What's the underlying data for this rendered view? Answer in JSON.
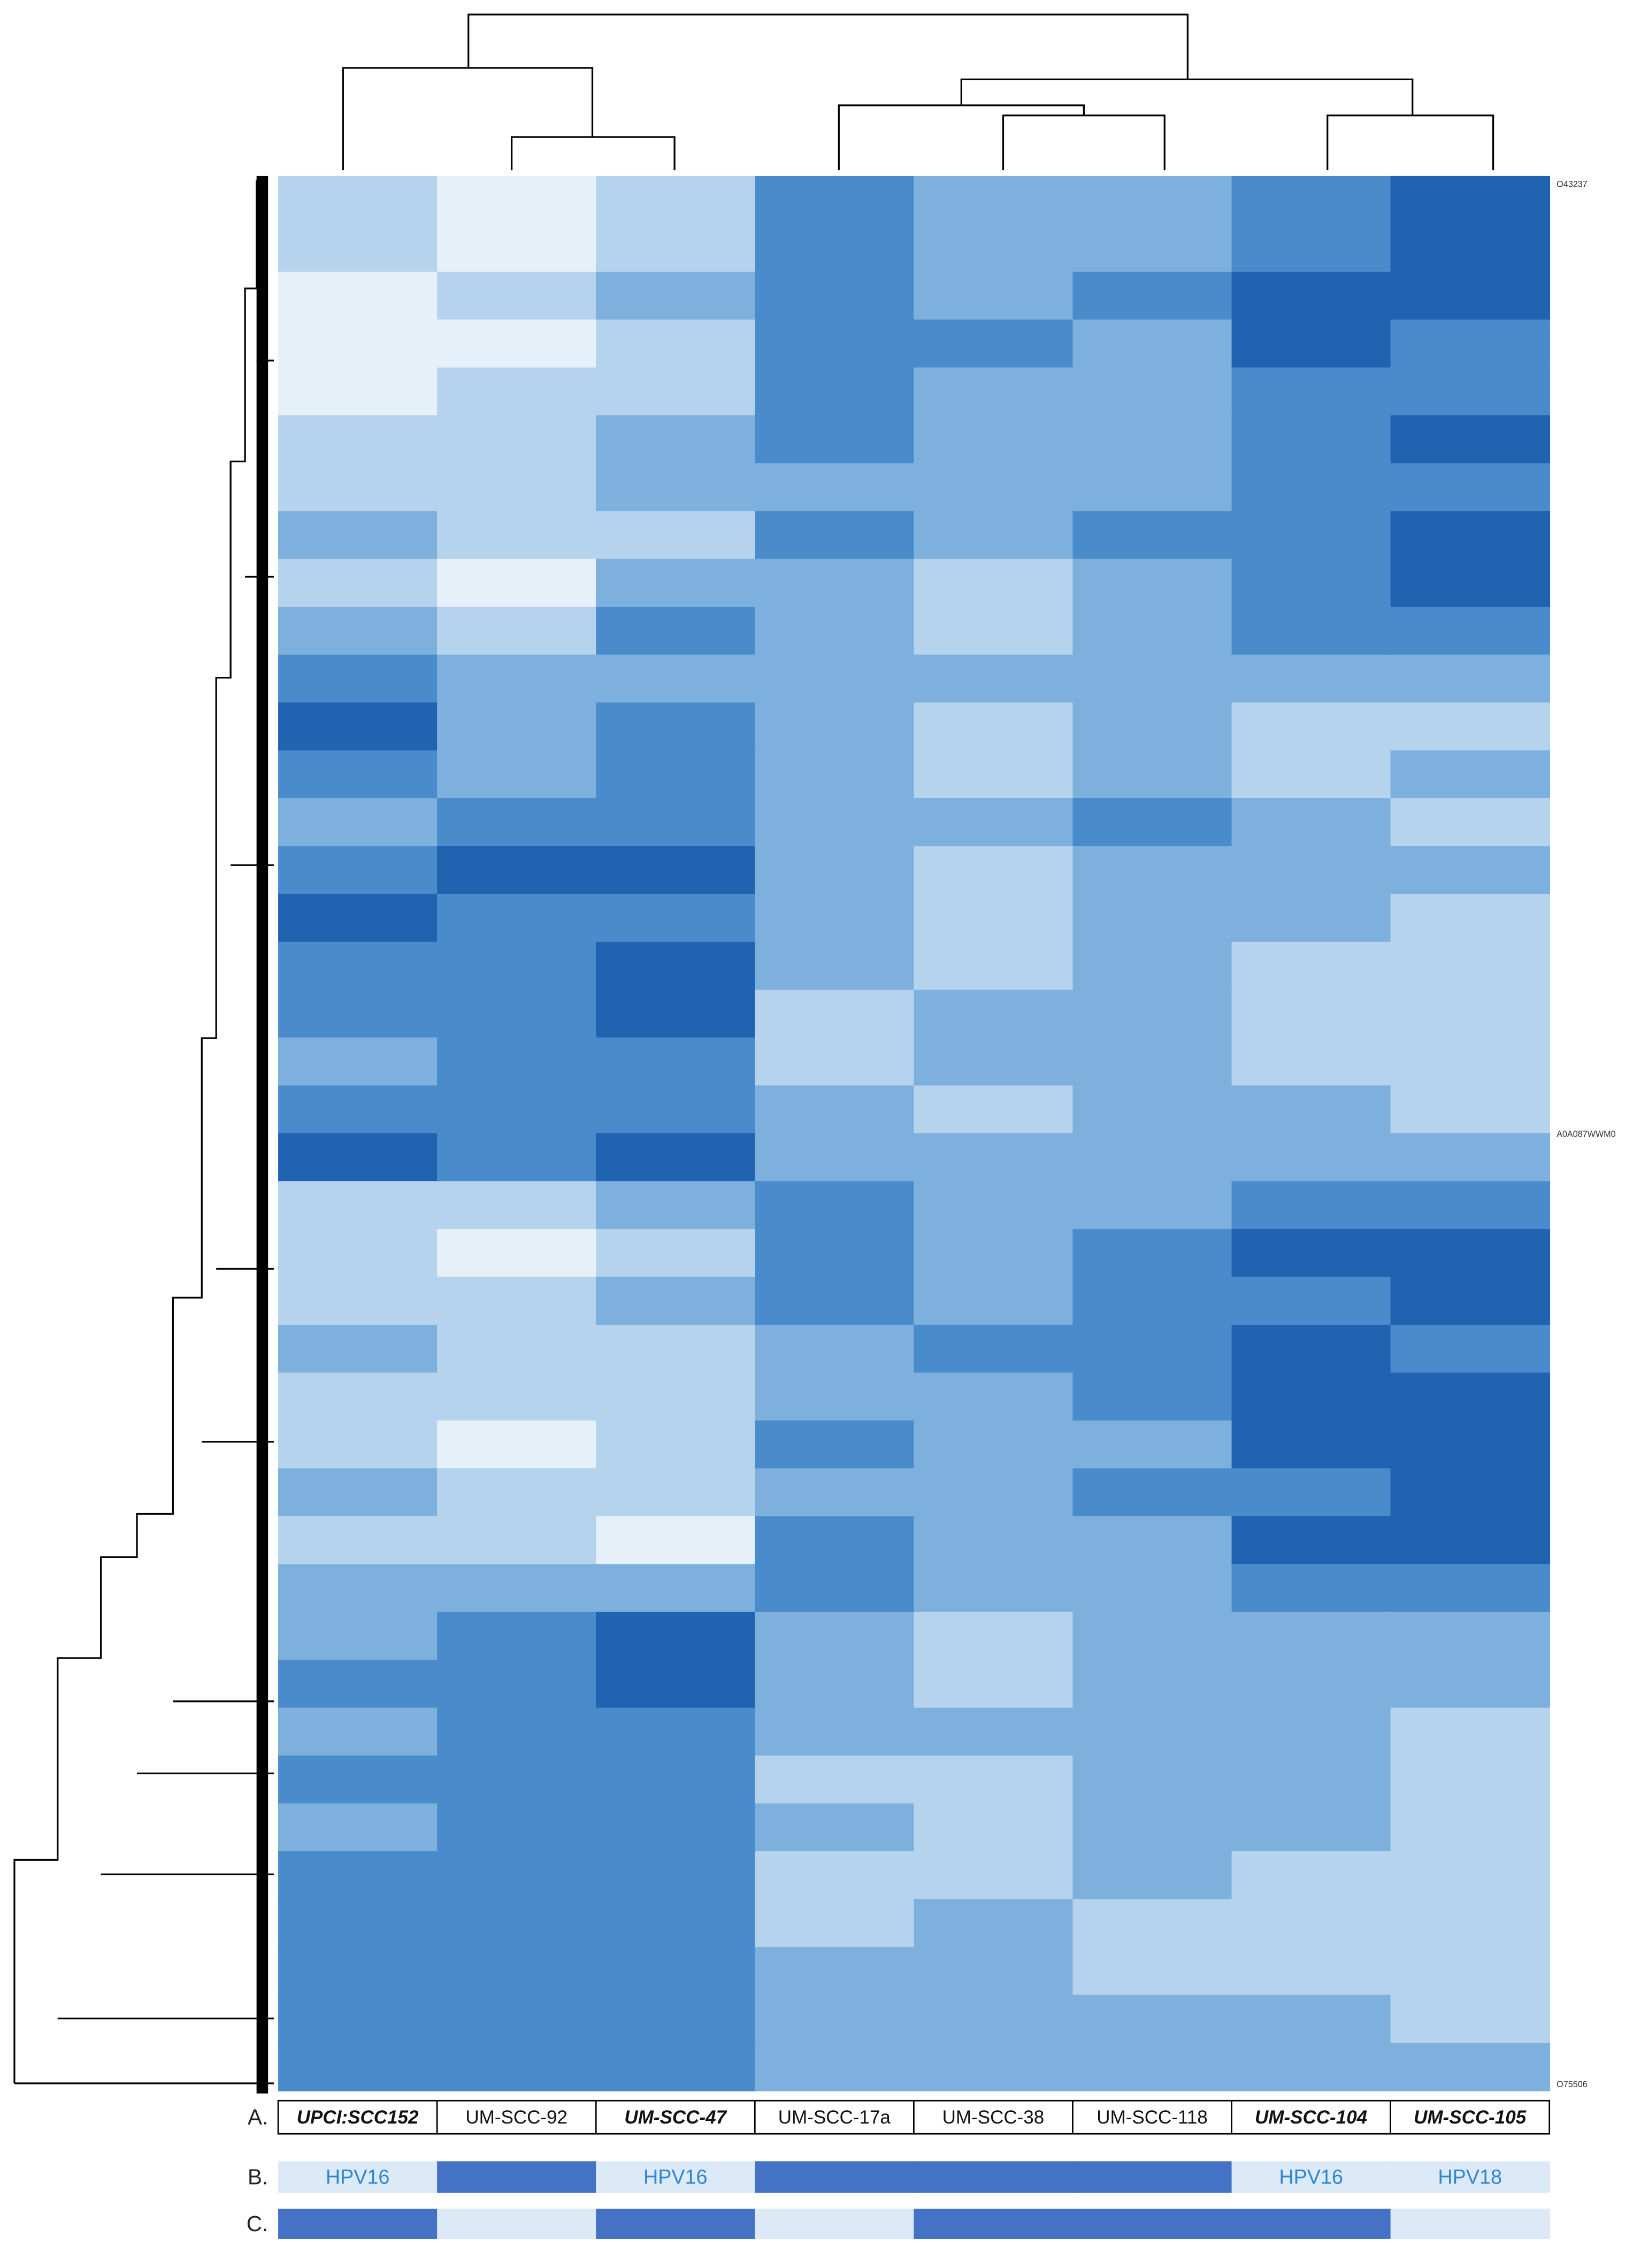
{
  "chart_data": {
    "type": "heatmap",
    "columns": [
      "UPCI:SCC152",
      "UM-SCC-92",
      "UM-SCC-47",
      "UM-SCC-17a",
      "UM-SCC-38",
      "UM-SCC-118",
      "UM-SCC-104",
      "UM-SCC-105"
    ],
    "column_styles": [
      "bold-italic",
      "normal",
      "bold-italic",
      "normal",
      "normal",
      "normal",
      "bold-italic",
      "bold-italic"
    ],
    "palette": [
      "#e6f0f9",
      "#b6d3ed",
      "#7db0dc",
      "#4a8ccb",
      "#1f63b1"
    ],
    "matrix": [
      [
        1,
        0,
        1,
        3,
        2,
        2,
        3,
        4
      ],
      [
        1,
        0,
        1,
        3,
        2,
        2,
        3,
        4
      ],
      [
        0,
        1,
        2,
        3,
        2,
        3,
        4,
        4
      ],
      [
        0,
        0,
        1,
        3,
        3,
        2,
        4,
        3
      ],
      [
        0,
        1,
        1,
        3,
        2,
        2,
        3,
        3
      ],
      [
        1,
        1,
        2,
        3,
        2,
        2,
        3,
        4
      ],
      [
        1,
        1,
        2,
        2,
        2,
        2,
        3,
        3
      ],
      [
        2,
        1,
        1,
        3,
        2,
        3,
        3,
        4
      ],
      [
        1,
        0,
        2,
        2,
        1,
        2,
        3,
        4
      ],
      [
        2,
        1,
        3,
        2,
        1,
        2,
        3,
        3
      ],
      [
        3,
        2,
        2,
        2,
        2,
        2,
        2,
        2
      ],
      [
        4,
        2,
        3,
        2,
        1,
        2,
        1,
        1
      ],
      [
        3,
        2,
        3,
        2,
        1,
        2,
        1,
        2
      ],
      [
        2,
        3,
        3,
        2,
        2,
        3,
        2,
        1
      ],
      [
        3,
        4,
        4,
        2,
        1,
        2,
        2,
        2
      ],
      [
        4,
        3,
        3,
        2,
        1,
        2,
        2,
        1
      ],
      [
        3,
        3,
        4,
        2,
        1,
        2,
        1,
        1
      ],
      [
        3,
        3,
        4,
        1,
        2,
        2,
        1,
        1
      ],
      [
        2,
        3,
        3,
        1,
        2,
        2,
        1,
        1
      ],
      [
        3,
        3,
        3,
        2,
        1,
        2,
        2,
        1
      ],
      [
        4,
        3,
        4,
        2,
        2,
        2,
        2,
        2
      ],
      [
        1,
        1,
        2,
        3,
        2,
        2,
        3,
        3
      ],
      [
        1,
        0,
        1,
        3,
        2,
        3,
        4,
        4
      ],
      [
        1,
        1,
        2,
        3,
        2,
        3,
        3,
        4
      ],
      [
        2,
        1,
        1,
        2,
        3,
        3,
        4,
        3
      ],
      [
        1,
        1,
        1,
        2,
        2,
        3,
        4,
        4
      ],
      [
        1,
        0,
        1,
        3,
        2,
        2,
        4,
        4
      ],
      [
        2,
        1,
        1,
        2,
        2,
        3,
        3,
        4
      ],
      [
        1,
        1,
        0,
        3,
        2,
        2,
        4,
        4
      ],
      [
        2,
        2,
        2,
        3,
        2,
        2,
        3,
        3
      ],
      [
        2,
        3,
        4,
        2,
        1,
        2,
        2,
        2
      ],
      [
        3,
        3,
        4,
        2,
        1,
        2,
        2,
        2
      ],
      [
        2,
        3,
        3,
        2,
        2,
        2,
        2,
        1
      ],
      [
        3,
        3,
        3,
        1,
        1,
        2,
        2,
        1
      ],
      [
        2,
        3,
        3,
        2,
        1,
        2,
        2,
        1
      ],
      [
        3,
        3,
        3,
        1,
        1,
        2,
        1,
        1
      ],
      [
        3,
        3,
        3,
        1,
        2,
        1,
        1,
        1
      ],
      [
        3,
        3,
        3,
        2,
        2,
        1,
        1,
        1
      ],
      [
        3,
        3,
        3,
        2,
        2,
        2,
        2,
        1
      ],
      [
        3,
        3,
        3,
        2,
        2,
        2,
        2,
        2
      ]
    ],
    "row_labels": [
      "O43237",
      "A0A087WWM0",
      "O75506"
    ],
    "tracks": [
      {
        "label": "A."
      },
      {
        "label": "B.",
        "colors": [
          "#dce9f7",
          "#4472c4",
          "#dce9f7",
          "#4472c4",
          "#4472c4",
          "#4472c4",
          "#dce9f7",
          "#dce9f7"
        ],
        "texts": [
          "HPV16",
          null,
          "HPV16",
          null,
          null,
          null,
          "HPV16",
          "HPV18"
        ],
        "text_color": "#2e86d1"
      },
      {
        "label": "C.",
        "colors": [
          "#4472c4",
          "#dce9f7",
          "#4472c4",
          "#dce9f7",
          "#4472c4",
          "#4472c4",
          "#4472c4",
          "#dce9f7"
        ]
      }
    ]
  }
}
